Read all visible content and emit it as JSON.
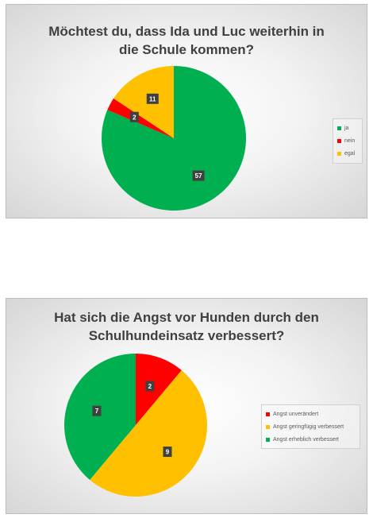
{
  "chart_data": [
    {
      "type": "pie",
      "title": "Möchtest du, dass Ida und Luc weiterhin in\ndie Schule kommen?",
      "categories": [
        "ja",
        "nein",
        "egal"
      ],
      "values": [
        57,
        2,
        11
      ],
      "colors": [
        "#00b050",
        "#ff0000",
        "#ffc000"
      ],
      "data_labels": [
        "57",
        "2",
        "11"
      ],
      "legend_position": "right"
    },
    {
      "type": "pie",
      "title": "Hat sich die Angst vor Hunden durch den\nSchulhundeinsatz verbessert?",
      "categories": [
        "Angst unverändert",
        "Angst geringfügig verbessert",
        "Angst erheblich verbessert"
      ],
      "values": [
        2,
        9,
        7
      ],
      "colors": [
        "#ff0000",
        "#ffc000",
        "#00b050"
      ],
      "data_labels": [
        "2",
        "9",
        "7"
      ],
      "legend_position": "right"
    }
  ]
}
